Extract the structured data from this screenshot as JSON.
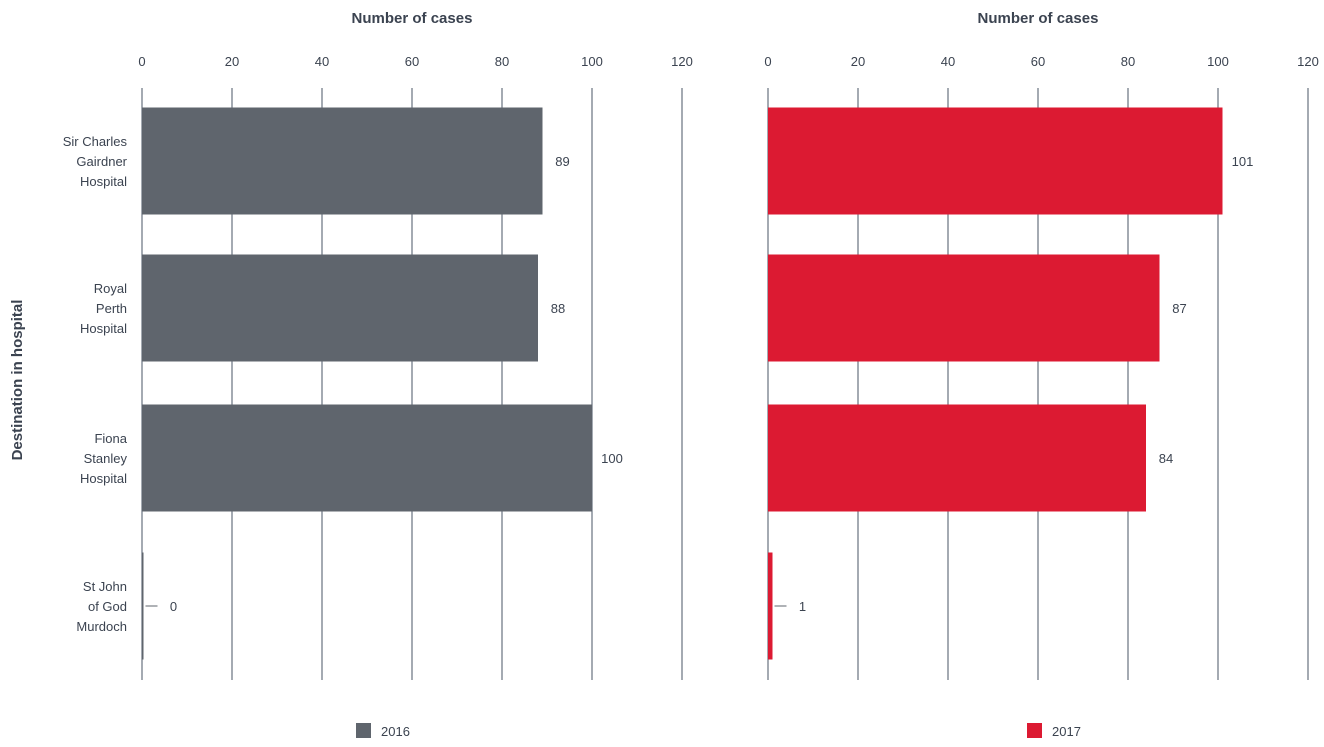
{
  "chart_data": {
    "type": "bar",
    "orientation": "horizontal",
    "ylabel": "Destination in hospital",
    "categories": [
      [
        "Sir Charles",
        "Gairdner",
        "Hospital"
      ],
      [
        "Royal",
        "Perth",
        "Hospital"
      ],
      [
        "Fiona",
        "Stanley",
        "Hospital"
      ],
      [
        "St John",
        "of God",
        "Murdoch"
      ]
    ],
    "panels": [
      {
        "xlabel": "Number of cases",
        "xlim": [
          0,
          120
        ],
        "xticks": [
          0,
          20,
          40,
          60,
          80,
          100,
          120
        ],
        "series": [
          {
            "name": "2016",
            "color": "#5f656d",
            "values": [
              89,
              88,
              100,
              0
            ]
          }
        ]
      },
      {
        "xlabel": "Number of cases",
        "xlim": [
          0,
          120
        ],
        "xticks": [
          0,
          20,
          40,
          60,
          80,
          100,
          120
        ],
        "series": [
          {
            "name": "2017",
            "color": "#dc1a32",
            "values": [
              101,
              87,
              84,
              1
            ]
          }
        ]
      }
    ],
    "grid": true,
    "legend_position": "bottom"
  }
}
